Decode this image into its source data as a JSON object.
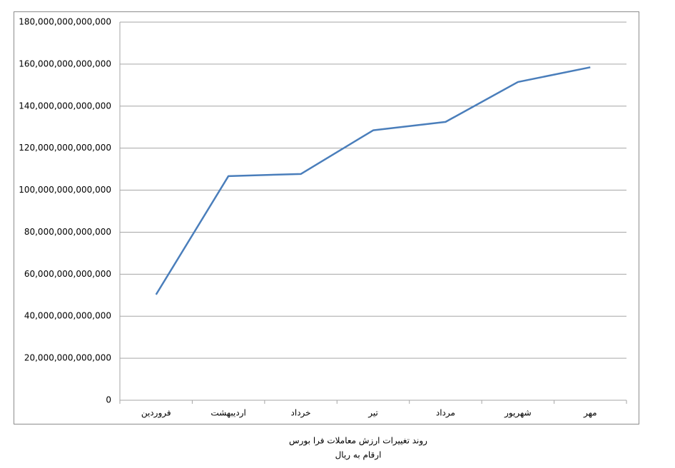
{
  "chart_data": {
    "type": "line",
    "title": "روند تغییرات ارزش معاملات فرا بورس",
    "subtitle": "ارقام به ریال",
    "categories": [
      "فروردین",
      "اردیبهشت",
      "خرداد",
      "تیر",
      "مرداد",
      "شهریور",
      "مهر"
    ],
    "series": [
      {
        "name": "ارزش معاملات",
        "color": "#4a7ebb",
        "values": [
          50300000000000,
          106700000000000,
          107700000000000,
          128500000000000,
          132500000000000,
          151500000000000,
          158500000000000
        ]
      }
    ],
    "ylim": [
      0,
      180000000000000
    ],
    "yticks": [
      0,
      {
        "value": 20000000000000,
        "label": "20,000,000,000,000"
      },
      {
        "value": 40000000000000,
        "label": "40,000,000,000,000"
      },
      {
        "value": 60000000000000,
        "label": "60,000,000,000,000"
      },
      {
        "value": 80000000000000,
        "label": "80,000,000,000,000"
      },
      {
        "value": 100000000000000,
        "label": "100,000,000,000,000"
      },
      {
        "value": 120000000000000,
        "label": "120,000,000,000,000"
      },
      {
        "value": 140000000000000,
        "label": "140,000,000,000,000"
      },
      {
        "value": 160000000000000,
        "label": "160,000,000,000,000"
      },
      {
        "value": 180000000000000,
        "label": "180,000,000,000,000"
      }
    ],
    "grid": true
  }
}
